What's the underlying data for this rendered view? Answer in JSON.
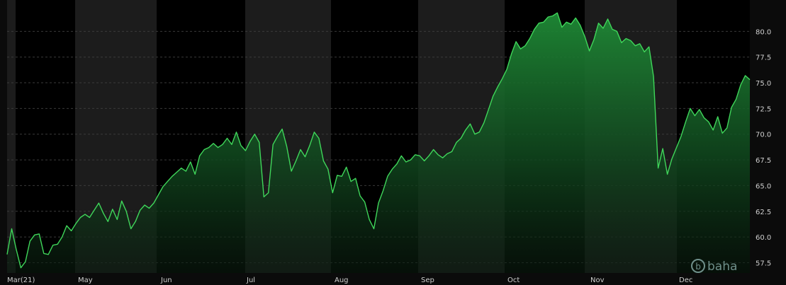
{
  "chart_data": {
    "type": "area",
    "title": "",
    "xlabel": "",
    "ylabel": "",
    "x_axis_labels": [
      "Mar(21)",
      "May",
      "Jun",
      "Jul",
      "Aug",
      "Sep",
      "Oct",
      "Nov",
      "Dec"
    ],
    "y_ticks": [
      57.5,
      60.0,
      62.5,
      65.0,
      67.5,
      70.0,
      72.5,
      75.0,
      77.5,
      80.0
    ],
    "ylim": [
      56.5,
      82.5
    ],
    "grid": true,
    "line_color": "#3fd65a",
    "fill_color": "#1f8a36",
    "background_colors": [
      "#000000",
      "#1c1c1c"
    ],
    "logo_text": "baha",
    "series": [
      {
        "values": [
          58.3,
          60.8,
          58.8,
          57.0,
          57.6,
          59.6,
          60.2,
          60.3,
          58.4,
          58.3,
          59.2,
          59.3,
          60.0,
          61.1,
          60.6,
          61.3,
          61.9,
          62.2,
          61.9,
          62.6,
          63.3,
          62.3,
          61.5,
          62.7,
          61.7,
          63.5,
          62.5,
          60.8,
          61.5,
          62.6,
          63.1,
          62.8,
          63.3,
          64.1,
          64.9,
          65.4,
          65.9,
          66.3,
          66.7,
          66.4,
          67.3,
          66.1,
          67.9,
          68.5,
          68.7,
          69.1,
          68.7,
          69.0,
          69.6,
          69.0,
          70.2,
          68.9,
          68.4,
          69.3,
          70.0,
          69.2,
          63.9,
          64.3,
          69.0,
          69.8,
          70.5,
          68.8,
          66.4,
          67.4,
          68.5,
          67.8,
          68.9,
          70.2,
          69.6,
          67.4,
          66.6,
          64.3,
          66.0,
          65.9,
          66.8,
          65.4,
          65.7,
          64.0,
          63.4,
          61.7,
          60.8,
          63.3,
          64.5,
          65.9,
          66.6,
          67.1,
          67.9,
          67.3,
          67.5,
          68.0,
          67.9,
          67.4,
          67.9,
          68.5,
          68.0,
          67.7,
          68.1,
          68.3,
          69.2,
          69.6,
          70.4,
          71.0,
          70.0,
          70.2,
          71.1,
          72.4,
          73.7,
          74.6,
          75.4,
          76.3,
          77.8,
          79.0,
          78.3,
          78.6,
          79.3,
          80.2,
          80.8,
          80.9,
          81.4,
          81.5,
          81.8,
          80.4,
          80.9,
          80.7,
          81.3,
          80.6,
          79.5,
          78.1,
          79.2,
          80.8,
          80.3,
          81.2,
          80.2,
          80.0,
          78.9,
          79.3,
          79.1,
          78.6,
          78.8,
          78.0,
          78.5,
          75.6,
          66.7,
          68.6,
          66.1,
          67.6,
          68.7,
          69.8,
          71.2,
          72.5,
          71.8,
          72.4,
          71.6,
          71.2,
          70.4,
          71.7,
          70.1,
          70.6,
          72.6,
          73.4,
          74.8,
          75.7,
          75.3
        ]
      }
    ]
  }
}
